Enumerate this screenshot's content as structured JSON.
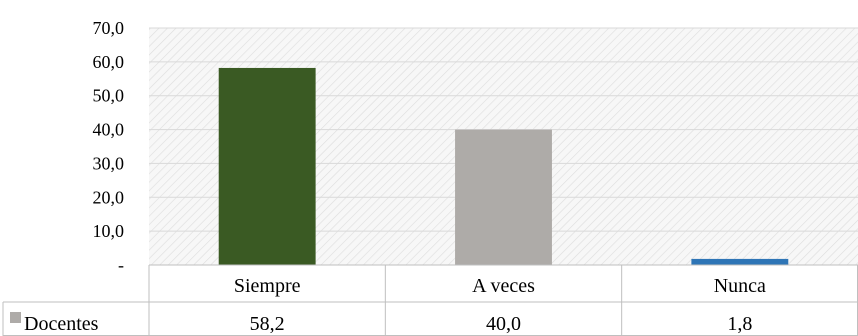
{
  "chart_data": {
    "type": "bar",
    "categories": [
      "Siempre",
      "A veces",
      "Nunca"
    ],
    "series": [
      {
        "name": "Docentes",
        "values": [
          58.2,
          40.0,
          1.8
        ],
        "value_labels": [
          "58,2",
          "40,0",
          "1,8"
        ],
        "colors": [
          "#3a5a23",
          "#aeaba8",
          "#2e75b6"
        ],
        "legend_color": "#aeaba8"
      }
    ],
    "ylim": [
      0,
      70
    ],
    "y_ticks": [
      0,
      10,
      20,
      30,
      40,
      50,
      60,
      70
    ],
    "y_tick_labels": [
      "-",
      "10,0",
      "20,0",
      "30,0",
      "40,0",
      "50,0",
      "60,0",
      "70,0"
    ],
    "grid": true,
    "plot_background": "hatched light gray",
    "data_table": true
  }
}
